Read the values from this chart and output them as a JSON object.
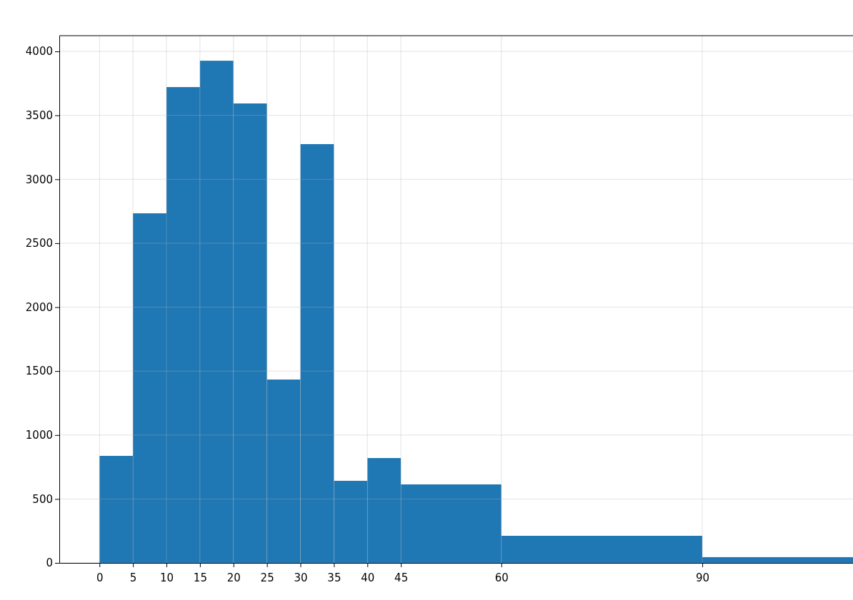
{
  "chart_data": {
    "type": "histogram",
    "bins": [
      0,
      5,
      10,
      15,
      20,
      25,
      30,
      35,
      40,
      45,
      60,
      90,
      112.5
    ],
    "values": [
      837,
      2734,
      3721,
      3927,
      3593,
      1434,
      3275,
      642,
      820,
      614,
      212,
      45
    ],
    "color": "#1f77b4",
    "xlim": [
      -6,
      112.5
    ],
    "xticks": [
      0,
      5,
      10,
      15,
      20,
      25,
      30,
      35,
      40,
      45,
      60,
      90
    ],
    "ylim": [
      0,
      4123
    ],
    "yticks": [
      0,
      500,
      1000,
      1500,
      2000,
      2500,
      3000,
      3500,
      4000
    ],
    "grid": true
  }
}
